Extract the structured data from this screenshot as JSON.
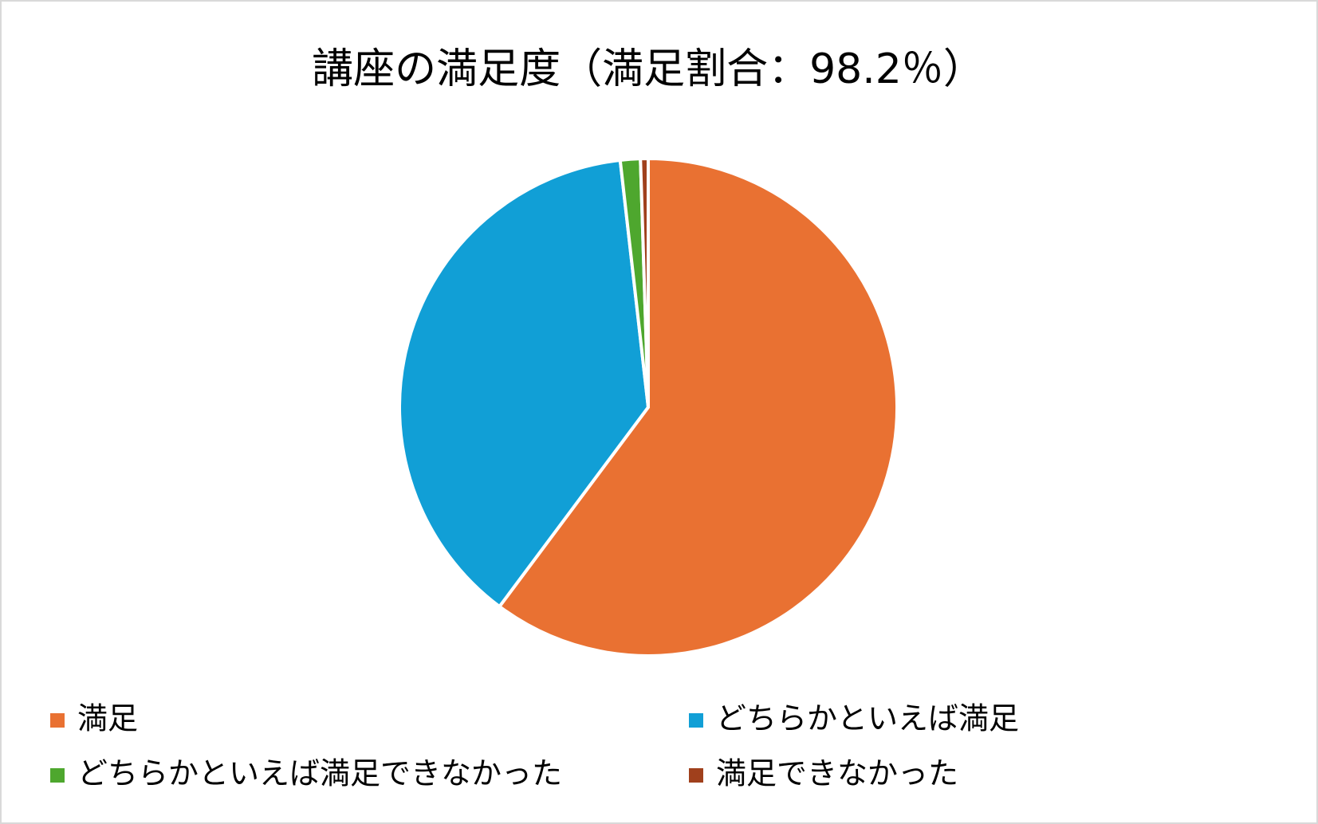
{
  "chart_data": {
    "type": "pie",
    "title": "講座の満足度（満足割合：98.2％）",
    "categories": [
      "満足",
      "どちらかといえば満足",
      "どちらかといえば満足できなかった",
      "満足できなかった"
    ],
    "values": [
      60.2,
      38.0,
      1.3,
      0.5
    ],
    "colors": [
      "#e97132",
      "#119fd6",
      "#4ea72e",
      "#a0401c"
    ]
  }
}
